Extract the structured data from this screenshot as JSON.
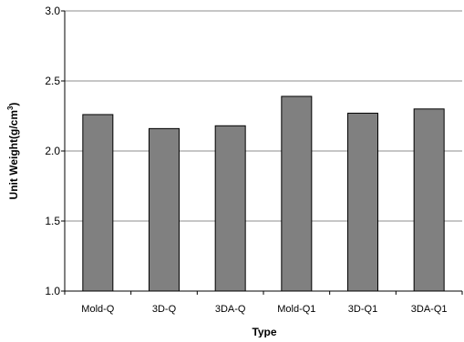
{
  "chart_data": {
    "type": "bar",
    "categories": [
      "Mold-Q",
      "3D-Q",
      "3DA-Q",
      "Mold-Q1",
      "3D-Q1",
      "3DA-Q1"
    ],
    "values": [
      2.26,
      2.16,
      2.18,
      2.39,
      2.27,
      2.3
    ],
    "xlabel": "Type",
    "ylabel_main": "Unit Weight(g/cm",
    "ylabel_sup": "3",
    "ylabel_end": ")",
    "ylim": [
      1.0,
      3.0
    ],
    "yticks": [
      "1.0",
      "1.5",
      "2.0",
      "2.5",
      "3.0"
    ],
    "ytick_values": [
      1.0,
      1.5,
      2.0,
      2.5,
      3.0
    ],
    "grid": true,
    "legend": "none",
    "bar_color": "#808080",
    "bar_edge_color": "#000000",
    "grid_color": "#8c8c8c"
  }
}
